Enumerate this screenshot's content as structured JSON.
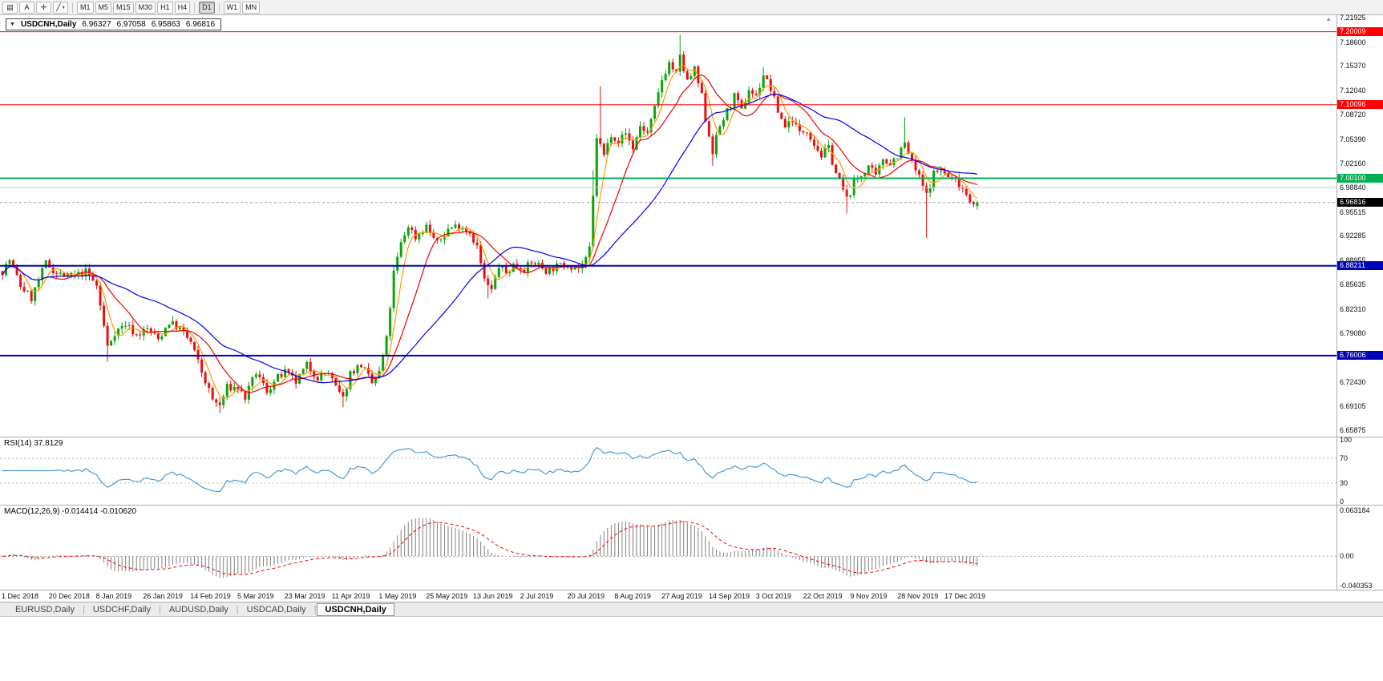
{
  "toolbar": {
    "icon_buttons": [
      {
        "name": "chart-window",
        "glyph": "▤",
        "caret": false
      },
      {
        "name": "cursor-mode",
        "glyph": "A",
        "caret": false
      },
      {
        "name": "crosshair",
        "glyph": "✛",
        "caret": false
      },
      {
        "name": "draw-tools",
        "glyph": "╱",
        "caret": true
      }
    ],
    "timeframe_groups": [
      [
        "M1",
        "M5",
        "M15",
        "M30",
        "H1",
        "H4"
      ],
      [
        "D1"
      ],
      [
        "W1",
        "MN"
      ]
    ],
    "active_timeframe": "D1"
  },
  "chart": {
    "collapse_icon": "▼",
    "symbol_label": "USDCNH,Daily",
    "open": "6.96327",
    "high": "6.97058",
    "low": "6.95863",
    "close": "6.96816"
  },
  "price_axis_ticks": [
    "7.21925",
    "7.18600",
    "7.15370",
    "7.12040",
    "7.08720",
    "7.05390",
    "7.02160",
    "6.98840",
    "6.95515",
    "6.92285",
    "6.88955",
    "6.85635",
    "6.82310",
    "6.79080",
    "6.75750",
    "6.72430",
    "6.69105",
    "6.65875"
  ],
  "date_axis": [
    "1 Dec 2018",
    "20 Dec 2018",
    "8 Jan 2019",
    "26 Jan 2019",
    "14 Feb 2019",
    "5 Mar 2019",
    "23 Mar 2019",
    "11 Apr 2019",
    "1 May 2019",
    "25 May 2019",
    "13 Jun 2019",
    "2 Jul 2019",
    "20 Jul 2019",
    "8 Aug 2019",
    "27 Aug 2019",
    "14 Sep 2019",
    "3 Oct 2019",
    "22 Oct 2019",
    "9 Nov 2019",
    "28 Nov 2019",
    "17 Dec 2019"
  ],
  "rsi": {
    "label": "RSI(14)",
    "value": "37.8129",
    "axis": [
      "100",
      "70",
      "30",
      "0"
    ],
    "levels": [
      70,
      30
    ]
  },
  "macd": {
    "label": "MACD(12,26,9)",
    "values": "-0.014414 -0.010620",
    "axis_top": "0.063184",
    "axis_zero": "0.00",
    "axis_bottom": "-0.040353",
    "range": [
      -0.040353,
      0.063184
    ]
  },
  "tabs": [
    {
      "label": "EURUSD,Daily",
      "active": false
    },
    {
      "label": "USDCHF,Daily",
      "active": false
    },
    {
      "label": "AUDUSD,Daily",
      "active": false
    },
    {
      "label": "USDCAD,Daily",
      "active": false
    },
    {
      "label": "USDCNH,Daily",
      "active": true
    }
  ],
  "colors": {
    "up": "#0ba50b",
    "down": "#e81010",
    "hline_red": "#ff0000",
    "hline_green": "#00b050",
    "hline_blue": "#0000bb",
    "current_price_line": "#999999",
    "current_chip_bg": "#000000",
    "ma_fast": "#ff9900",
    "ma_mid": "#ee0000",
    "ma_slow": "#0000ee",
    "rsi_line": "#4b9bd5",
    "macd_hist": "#808080",
    "macd_signal": "#ff0000"
  },
  "chart_data": {
    "type": "candlestick",
    "symbol": "USDCNH",
    "timeframe": "Daily",
    "title": "USDCNH,Daily 6.96327 6.97058 6.95863 6.96816",
    "visible_price_range": {
      "top": 7.21925,
      "bottom": 6.65875
    },
    "candle_count": 270,
    "note": "close_anchors are [candleIndex, closePrice] keypoints read from the chart; intermediate candles are interpolated estimates",
    "close_anchors": [
      [
        0,
        6.875
      ],
      [
        2,
        6.89
      ],
      [
        5,
        6.855
      ],
      [
        8,
        6.838
      ],
      [
        12,
        6.886
      ],
      [
        15,
        6.872
      ],
      [
        19,
        6.866
      ],
      [
        23,
        6.874
      ],
      [
        26,
        6.855
      ],
      [
        28,
        6.8
      ],
      [
        29,
        6.772
      ],
      [
        31,
        6.792
      ],
      [
        34,
        6.803
      ],
      [
        37,
        6.788
      ],
      [
        40,
        6.796
      ],
      [
        43,
        6.782
      ],
      [
        46,
        6.806
      ],
      [
        49,
        6.796
      ],
      [
        52,
        6.778
      ],
      [
        55,
        6.738
      ],
      [
        58,
        6.7
      ],
      [
        60,
        6.692
      ],
      [
        62,
        6.717
      ],
      [
        65,
        6.716
      ],
      [
        67,
        6.703
      ],
      [
        70,
        6.737
      ],
      [
        73,
        6.712
      ],
      [
        76,
        6.73
      ],
      [
        78,
        6.737
      ],
      [
        81,
        6.724
      ],
      [
        84,
        6.747
      ],
      [
        87,
        6.731
      ],
      [
        90,
        6.737
      ],
      [
        92,
        6.716
      ],
      [
        94,
        6.701
      ],
      [
        96,
        6.737
      ],
      [
        99,
        6.748
      ],
      [
        102,
        6.722
      ],
      [
        104,
        6.737
      ],
      [
        106,
        6.782
      ],
      [
        108,
        6.872
      ],
      [
        110,
        6.912
      ],
      [
        112,
        6.937
      ],
      [
        114,
        6.921
      ],
      [
        117,
        6.936
      ],
      [
        120,
        6.912
      ],
      [
        123,
        6.932
      ],
      [
        126,
        6.938
      ],
      [
        129,
        6.928
      ],
      [
        131,
        6.908
      ],
      [
        133,
        6.862
      ],
      [
        135,
        6.848
      ],
      [
        137,
        6.882
      ],
      [
        139,
        6.872
      ],
      [
        141,
        6.883
      ],
      [
        144,
        6.879
      ],
      [
        147,
        6.887
      ],
      [
        150,
        6.876
      ],
      [
        153,
        6.881
      ],
      [
        156,
        6.884
      ],
      [
        159,
        6.879
      ],
      [
        161,
        6.889
      ],
      [
        162,
        6.905
      ],
      [
        163,
        6.975
      ],
      [
        164,
        7.058
      ],
      [
        166,
        7.032
      ],
      [
        168,
        7.062
      ],
      [
        170,
        7.052
      ],
      [
        172,
        7.062
      ],
      [
        174,
        7.042
      ],
      [
        176,
        7.072
      ],
      [
        178,
        7.062
      ],
      [
        180,
        7.095
      ],
      [
        182,
        7.135
      ],
      [
        184,
        7.158
      ],
      [
        186,
        7.142
      ],
      [
        187,
        7.165
      ],
      [
        189,
        7.132
      ],
      [
        191,
        7.148
      ],
      [
        193,
        7.112
      ],
      [
        194,
        7.082
      ],
      [
        196,
        7.038
      ],
      [
        198,
        7.072
      ],
      [
        200,
        7.092
      ],
      [
        202,
        7.112
      ],
      [
        204,
        7.092
      ],
      [
        206,
        7.122
      ],
      [
        208,
        7.112
      ],
      [
        210,
        7.142
      ],
      [
        212,
        7.122
      ],
      [
        214,
        7.092
      ],
      [
        216,
        7.072
      ],
      [
        218,
        7.082
      ],
      [
        220,
        7.062
      ],
      [
        222,
        7.068
      ],
      [
        224,
        7.048
      ],
      [
        226,
        7.032
      ],
      [
        228,
        7.042
      ],
      [
        230,
        7.008
      ],
      [
        232,
        6.985
      ],
      [
        233,
        6.972
      ],
      [
        235,
        6.995
      ],
      [
        237,
        7.005
      ],
      [
        239,
        7.018
      ],
      [
        241,
        7.002
      ],
      [
        243,
        7.028
      ],
      [
        245,
        7.022
      ],
      [
        247,
        7.032
      ],
      [
        249,
        7.048
      ],
      [
        251,
        7.022
      ],
      [
        253,
        7.002
      ],
      [
        255,
        6.978
      ],
      [
        257,
        7.008
      ],
      [
        259,
        7.012
      ],
      [
        261,
        7.002
      ],
      [
        263,
        6.998
      ],
      [
        265,
        6.988
      ],
      [
        267,
        6.972
      ],
      [
        269,
        6.96816
      ]
    ],
    "wick_overrides": {
      "29": {
        "l": 6.752
      },
      "60": {
        "l": 6.682
      },
      "94": {
        "l": 6.69
      },
      "134": {
        "l": 6.838
      },
      "163": {
        "h": 7.012
      },
      "165": {
        "h": 7.126
      },
      "187": {
        "h": 7.196
      },
      "196": {
        "l": 7.018
      },
      "210": {
        "h": 7.152
      },
      "233": {
        "l": 6.953
      },
      "249": {
        "h": 7.084
      },
      "255": {
        "l": 6.92
      }
    },
    "last_candle": {
      "o": 6.96327,
      "h": 6.97058,
      "l": 6.95863,
      "c": 6.96816
    },
    "hlines": [
      {
        "value": 7.20009,
        "color": "#ff0000",
        "width": 1,
        "label": "7.20009",
        "label_bg": "#ff0000"
      },
      {
        "value": 7.10096,
        "color": "#ff0000",
        "width": 1,
        "label": "7.10096",
        "label_bg": "#ff0000"
      },
      {
        "value": 7.001,
        "color": "#00b050",
        "width": 2,
        "label": "7.00100",
        "label_bg": "#00b050"
      },
      {
        "value": 6.9884,
        "color": "#c8c8c8",
        "width": 1,
        "label": null,
        "label_bg": null
      },
      {
        "value": 6.88211,
        "color": "#0000bb",
        "width": 2,
        "label": "6.88211",
        "label_bg": "#0000bb"
      },
      {
        "value": 6.76006,
        "color": "#0000bb",
        "width": 2,
        "label": "6.76006",
        "label_bg": "#0000bb"
      }
    ],
    "current_price": {
      "value": 6.96816,
      "label": "6.96816",
      "label_bg": "#000000"
    },
    "moving_averages": [
      {
        "period": 5,
        "color": "#ff9900"
      },
      {
        "period": 13,
        "color": "#ee0000"
      },
      {
        "period": 34,
        "color": "#0000ee"
      }
    ],
    "indicators": {
      "rsi": {
        "period": 14,
        "current": 37.8129,
        "scale": [
          0,
          100
        ],
        "levels": [
          30,
          70
        ]
      },
      "macd": {
        "fast": 12,
        "slow": 26,
        "signal": 9,
        "current_main": -0.014414,
        "current_signal": -0.01062,
        "scale": [
          -0.040353,
          0.063184
        ]
      }
    }
  }
}
